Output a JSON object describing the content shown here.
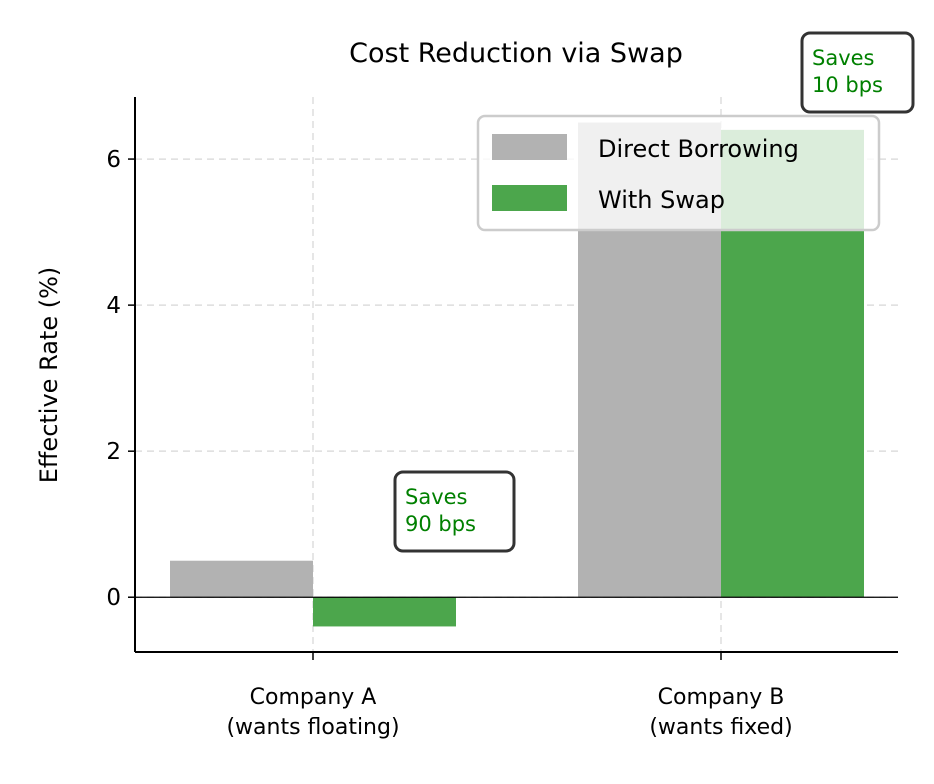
{
  "chart_data": {
    "type": "bar",
    "title": "Cost Reduction via Swap",
    "xlabel": "",
    "ylabel": "Effective Rate (%)",
    "categories": [
      "Company A\n(wants floating)",
      "Company B\n(wants fixed)"
    ],
    "series": [
      {
        "name": "Direct Borrowing",
        "values": [
          0.5,
          6.5
        ],
        "color": "#b2b2b2"
      },
      {
        "name": "With Swap",
        "values": [
          -0.4,
          6.4
        ],
        "color": "#4ca64c"
      }
    ],
    "ylim": [
      -0.75,
      6.85
    ],
    "yticks": [
      0,
      2,
      4,
      6
    ],
    "grid": true,
    "legend_position": "upper-right",
    "annotations": [
      {
        "text": "Saves\n90 bps",
        "category": 0,
        "color": "#008000"
      },
      {
        "text": "Saves\n10 bps",
        "category": 1,
        "color": "#008000"
      }
    ]
  }
}
